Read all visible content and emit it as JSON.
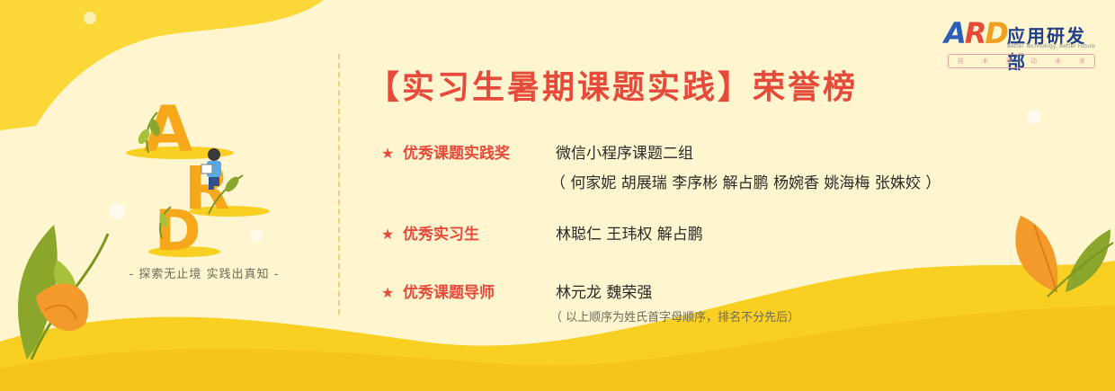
{
  "title": "【实习生暑期课题实践】荣誉榜",
  "motto": "- 探索无止境  实践出真知 -",
  "logo": {
    "letters": [
      "A",
      "R",
      "D"
    ],
    "name": "应用研发部",
    "tagline": "Better Technology, Better Future",
    "box_chars": [
      "技",
      "术",
      "驱",
      "动",
      "未",
      "来"
    ]
  },
  "awards": [
    {
      "category": "优秀课题实践奖",
      "value": "微信小程序课题二组"
    },
    {
      "category": "优秀实习生",
      "value": "林聪仁   王玮权   解占鹏"
    },
    {
      "category": "优秀课题导师",
      "value": "林元龙   魏荣强"
    }
  ],
  "team_members": "（ 何家妮   胡展瑞   李序彬   解占鹏   杨婉香   姚海梅   张姝姣 ）",
  "note": "（ 以上顺序为姓氏首字母顺序，排名不分先后）",
  "colors": {
    "accent": "#e64a3b",
    "background": "#fff6cf",
    "yellow": "#f9cf22",
    "orange": "#f39a2b",
    "green": "#8aa72c"
  }
}
